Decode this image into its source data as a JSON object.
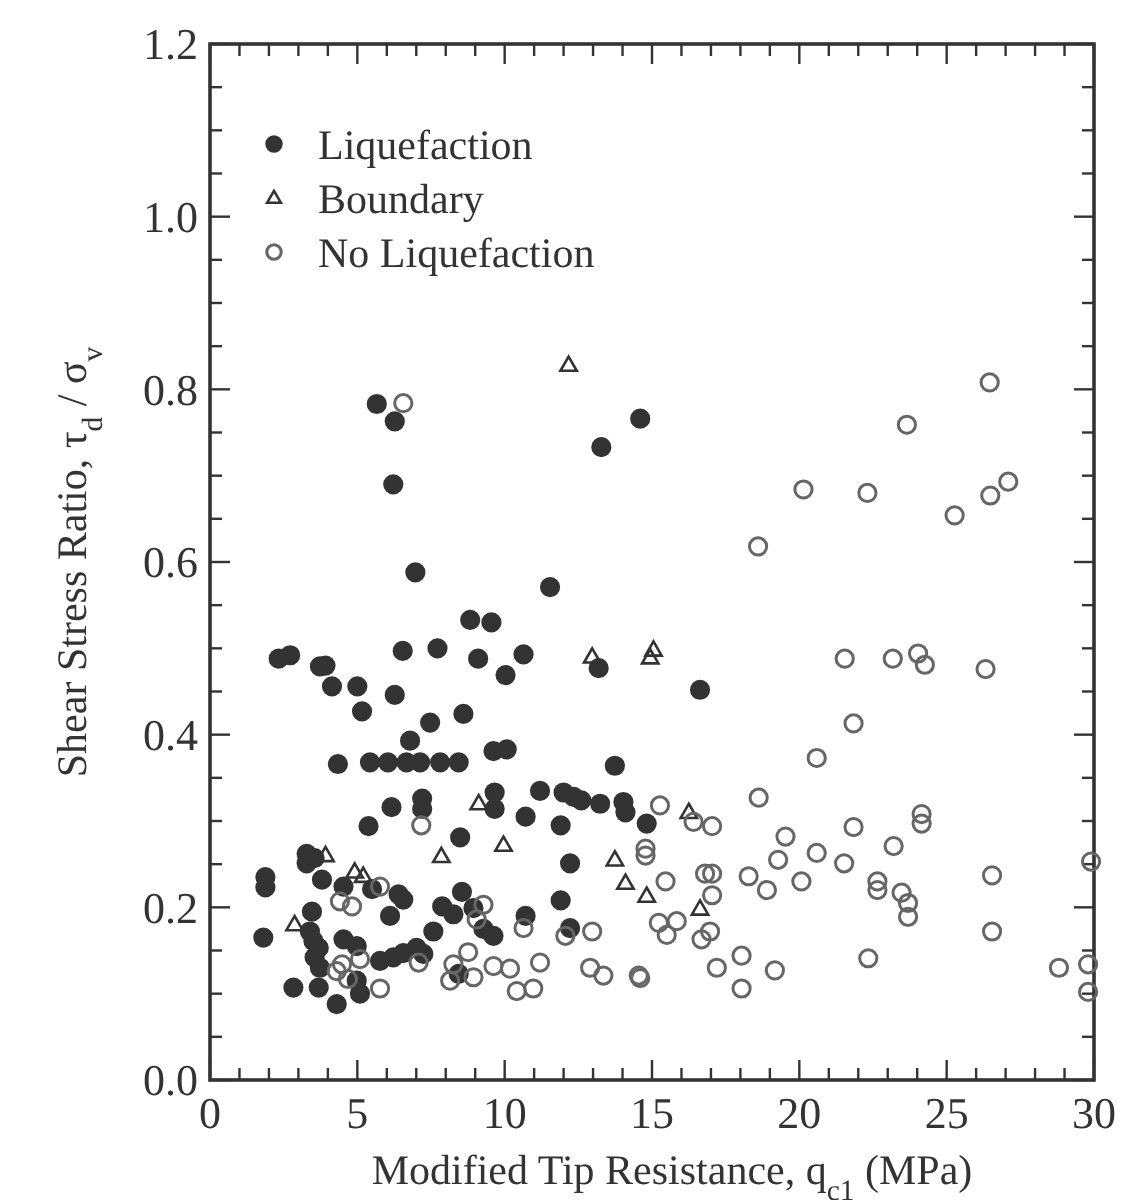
{
  "chart_data": {
    "type": "scatter",
    "xlabel": "Modified Tip Resistance, q$_{c1}$ (MPa)",
    "ylabel": "Shear Stress Ratio, τ$_{d}$ / σ$_{v}$",
    "xlim": [
      0,
      30
    ],
    "ylim": [
      0,
      1.2
    ],
    "xticks": [
      0,
      {
        "value": 1,
        "label": null
      },
      {
        "value": 2,
        "label": null
      },
      {
        "value": 3,
        "label": null
      },
      {
        "value": 4,
        "label": null
      },
      5,
      {
        "value": 6,
        "label": null
      },
      {
        "value": 7,
        "label": null
      },
      {
        "value": 8,
        "label": null
      },
      {
        "value": 9,
        "label": null
      },
      10,
      {
        "value": 11,
        "label": null
      },
      {
        "value": 12,
        "label": null
      },
      {
        "value": 13,
        "label": null
      },
      {
        "value": 14,
        "label": null
      },
      15,
      {
        "value": 16,
        "label": null
      },
      {
        "value": 17,
        "label": null
      },
      {
        "value": 18,
        "label": null
      },
      {
        "value": 19,
        "label": null
      },
      20,
      {
        "value": 21,
        "label": null
      },
      {
        "value": 22,
        "label": null
      },
      {
        "value": 23,
        "label": null
      },
      {
        "value": 24,
        "label": null
      },
      25,
      {
        "value": 26,
        "label": null
      },
      {
        "value": 27,
        "label": null
      },
      {
        "value": 28,
        "label": null
      },
      {
        "value": 29,
        "label": null
      },
      30
    ],
    "yticks": [
      {
        "value": 0,
        "label": "0.0"
      },
      {
        "value": 0.05,
        "label": null
      },
      {
        "value": 0.1,
        "label": null
      },
      {
        "value": 0.15,
        "label": null
      },
      {
        "value": 0.2,
        "label": "0.2"
      },
      {
        "value": 0.25,
        "label": null
      },
      {
        "value": 0.3,
        "label": null
      },
      {
        "value": 0.35,
        "label": null
      },
      {
        "value": 0.4,
        "label": "0.4"
      },
      {
        "value": 0.45,
        "label": null
      },
      {
        "value": 0.5,
        "label": null
      },
      {
        "value": 0.55,
        "label": null
      },
      {
        "value": 0.6,
        "label": "0.6"
      },
      {
        "value": 0.65,
        "label": null
      },
      {
        "value": 0.7,
        "label": null
      },
      {
        "value": 0.75,
        "label": null
      },
      {
        "value": 0.8,
        "label": "0.8"
      },
      {
        "value": 0.85,
        "label": null
      },
      {
        "value": 0.9,
        "label": null
      },
      {
        "value": 0.95,
        "label": null
      },
      {
        "value": 1.0,
        "label": "1.0"
      },
      {
        "value": 1.05,
        "label": null
      },
      {
        "value": 1.1,
        "label": null
      },
      {
        "value": 1.15,
        "label": null
      },
      {
        "value": 1.2,
        "label": "1.2"
      }
    ],
    "grid": false,
    "legend": "top left",
    "series": [
      {
        "name": "Liquefaction",
        "color": "#333333",
        "marker": "circle",
        "x": [
          5.66,
          6.27,
          6.22,
          6.97,
          11.54,
          8.83,
          9.55,
          2.33,
          2.72,
          3.73,
          3.92,
          4.14,
          5.0,
          6.27,
          5.16,
          6.54,
          7.72,
          9.1,
          10.03,
          10.64,
          13.19,
          13.28,
          14.6,
          7.47,
          8.6,
          16.63,
          14.82,
          6.79,
          4.34,
          5.43,
          6.04,
          6.67,
          7.13,
          7.81,
          8.44,
          9.62,
          10.07,
          13.74,
          6.16,
          7.2,
          7.2,
          9.66,
          9.66,
          10.71,
          11.2,
          12.0,
          12.34,
          12.6,
          13.24,
          14.03,
          14.1,
          5.38,
          8.49,
          11.9,
          12.22,
          1.88,
          1.88,
          3.28,
          3.28,
          3.55,
          3.8,
          4.53,
          5.5,
          6.4,
          6.56,
          6.11,
          7.88,
          8.55,
          8.26,
          8.94,
          9.28,
          7.58,
          10.71,
          11.9,
          12.22,
          1.81,
          2.83,
          3.46,
          3.39,
          3.51,
          3.69,
          3.55,
          3.73,
          3.69,
          4.3,
          4.53,
          4.98,
          5.09,
          4.98,
          5.77,
          6.22,
          6.56,
          7.01,
          7.24,
          8.44,
          9.62
        ],
        "values": [
          0.783,
          0.763,
          0.69,
          0.588,
          0.571,
          0.533,
          0.53,
          0.488,
          0.492,
          0.479,
          0.48,
          0.456,
          0.456,
          0.446,
          0.427,
          0.497,
          0.5,
          0.488,
          0.469,
          0.493,
          0.477,
          0.733,
          0.766,
          0.414,
          0.424,
          0.452,
          0.297,
          0.393,
          0.366,
          0.368,
          0.368,
          0.368,
          0.368,
          0.368,
          0.368,
          0.381,
          0.383,
          0.364,
          0.316,
          0.326,
          0.314,
          0.333,
          0.314,
          0.305,
          0.335,
          0.333,
          0.328,
          0.324,
          0.32,
          0.322,
          0.31,
          0.294,
          0.281,
          0.295,
          0.251,
          0.235,
          0.223,
          0.262,
          0.251,
          0.257,
          0.232,
          0.224,
          0.221,
          0.215,
          0.209,
          0.19,
          0.201,
          0.218,
          0.192,
          0.199,
          0.175,
          0.172,
          0.19,
          0.208,
          0.176,
          0.165,
          0.107,
          0.195,
          0.172,
          0.161,
          0.153,
          0.142,
          0.13,
          0.107,
          0.088,
          0.163,
          0.155,
          0.1,
          0.115,
          0.138,
          0.142,
          0.147,
          0.153,
          0.146,
          0.123,
          0.167
        ]
      },
      {
        "name": "Boundary",
        "color": "#333333",
        "marker": "triangle",
        "x": [
          12.17,
          12.97,
          14.94,
          15.05,
          16.25,
          16.63,
          14.82,
          2.87,
          3.92,
          4.91,
          5.2,
          7.85,
          9.96,
          9.12,
          13.74,
          14.1
        ],
        "values": [
          0.828,
          0.49,
          0.489,
          0.498,
          0.31,
          0.198,
          0.213,
          0.18,
          0.26,
          0.241,
          0.236,
          0.259,
          0.272,
          0.32,
          0.255,
          0.228
        ]
      },
      {
        "name": "No Liquefaction",
        "color": "#666666",
        "marker": "circle",
        "x": [
          6.56,
          26.46,
          23.65,
          20.14,
          22.31,
          27.09,
          26.48,
          25.27,
          18.6,
          21.54,
          23.17,
          24.03,
          24.26,
          26.32,
          21.84,
          20.59,
          18.62,
          15.27,
          16.41,
          17.04,
          19.53,
          21.84,
          23.2,
          24.15,
          24.15,
          19.28,
          20.59,
          21.52,
          14.78,
          14.78,
          15.46,
          18.28,
          18.9,
          20.07,
          22.65,
          22.65,
          23.47,
          23.69,
          23.69,
          26.54,
          26.54,
          16.8,
          17.04,
          17.04,
          15.23,
          15.5,
          15.84,
          16.68,
          16.97,
          17.2,
          18.04,
          18.04,
          19.17,
          22.34,
          28.81,
          29.8,
          29.8,
          29.9,
          14.6,
          7.17,
          5.77,
          4.41,
          4.82,
          9.28,
          9.05,
          8.76,
          10.64,
          12.06,
          12.97,
          4.3,
          4.48,
          4.68,
          5.09,
          5.77,
          8.15,
          8.26,
          8.94,
          9.62,
          10.18,
          10.41,
          10.97,
          11.2,
          12.9,
          13.35,
          14.55,
          7.08
        ],
        "values": [
          0.784,
          0.808,
          0.759,
          0.684,
          0.68,
          0.693,
          0.677,
          0.654,
          0.618,
          0.488,
          0.488,
          0.494,
          0.481,
          0.476,
          0.413,
          0.373,
          0.327,
          0.318,
          0.299,
          0.294,
          0.282,
          0.293,
          0.271,
          0.308,
          0.297,
          0.255,
          0.263,
          0.251,
          0.26,
          0.268,
          0.23,
          0.236,
          0.22,
          0.23,
          0.23,
          0.22,
          0.217,
          0.205,
          0.189,
          0.237,
          0.172,
          0.239,
          0.239,
          0.214,
          0.182,
          0.168,
          0.184,
          0.163,
          0.172,
          0.13,
          0.144,
          0.106,
          0.127,
          0.141,
          0.13,
          0.134,
          0.102,
          0.253,
          0.118,
          0.295,
          0.224,
          0.207,
          0.201,
          0.203,
          0.186,
          0.148,
          0.176,
          0.167,
          0.172,
          0.126,
          0.134,
          0.117,
          0.14,
          0.106,
          0.115,
          0.134,
          0.119,
          0.132,
          0.129,
          0.103,
          0.106,
          0.136,
          0.13,
          0.121,
          0.121,
          0.136
        ]
      }
    ]
  }
}
